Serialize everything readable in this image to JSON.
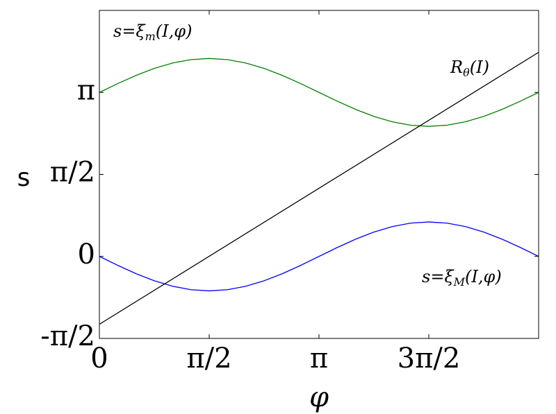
{
  "chart_data": {
    "type": "line",
    "x_label": "φ",
    "y_label": "s",
    "xlim": [
      0,
      6.2832
    ],
    "ylim": [
      -1.5708,
      4.7124
    ],
    "xticks": [
      {
        "value": 0,
        "label": "0"
      },
      {
        "value": 1.5708,
        "label": "π/2"
      },
      {
        "value": 3.1416,
        "label": "π"
      },
      {
        "value": 4.7124,
        "label": "3π/2"
      }
    ],
    "yticks": [
      {
        "value": -1.5708,
        "label": "-π/2"
      },
      {
        "value": 0,
        "label": "0"
      },
      {
        "value": 1.5708,
        "label": "π/2"
      },
      {
        "value": 3.1416,
        "label": "π"
      }
    ],
    "series": [
      {
        "color": "#008000",
        "x": [
          0,
          0.2618,
          0.5236,
          0.7854,
          1.0472,
          1.309,
          1.5708,
          1.8326,
          2.0944,
          2.3562,
          2.618,
          2.8798,
          3.1416,
          3.4034,
          3.6652,
          3.927,
          4.1888,
          4.4506,
          4.7124,
          4.9742,
          5.236,
          5.4978,
          5.7596,
          6.0214,
          6.2832
        ],
        "values": [
          3.1416,
          3.3098,
          3.4666,
          3.6012,
          3.7045,
          3.7694,
          3.7916,
          3.7694,
          3.7045,
          3.6012,
          3.4666,
          3.3098,
          3.1416,
          2.9734,
          2.8166,
          2.682,
          2.5787,
          2.5138,
          2.4916,
          2.5138,
          2.5787,
          2.682,
          2.8166,
          2.9734,
          3.1416
        ]
      },
      {
        "color": "#0000ff",
        "x": [
          0,
          0.2618,
          0.5236,
          0.7854,
          1.0472,
          1.309,
          1.5708,
          1.8326,
          2.0944,
          2.3562,
          2.618,
          2.8798,
          3.1416,
          3.4034,
          3.6652,
          3.927,
          4.1888,
          4.4506,
          4.7124,
          4.9742,
          5.236,
          5.4978,
          5.7596,
          6.0214,
          6.2832
        ],
        "values": [
          0,
          -0.1708,
          -0.33,
          -0.4667,
          -0.5716,
          -0.6375,
          -0.66,
          -0.6375,
          -0.5716,
          -0.4667,
          -0.33,
          -0.1708,
          0,
          0.1708,
          0.33,
          0.4667,
          0.5716,
          0.6375,
          0.66,
          0.6375,
          0.5716,
          0.4667,
          0.33,
          0.1708,
          0
        ]
      },
      {
        "color": "#000000",
        "x": [
          0,
          6.2832
        ],
        "values": [
          -1.3,
          3.91
        ]
      }
    ],
    "annotations": [
      {
        "main": "s=ξ",
        "sub": "m",
        "tail": "(I,φ)"
      },
      {
        "main": "R",
        "sub": "θ",
        "tail": "(I)"
      },
      {
        "main": "s=ξ",
        "sub": "M",
        "tail": "(I,φ)"
      }
    ]
  }
}
